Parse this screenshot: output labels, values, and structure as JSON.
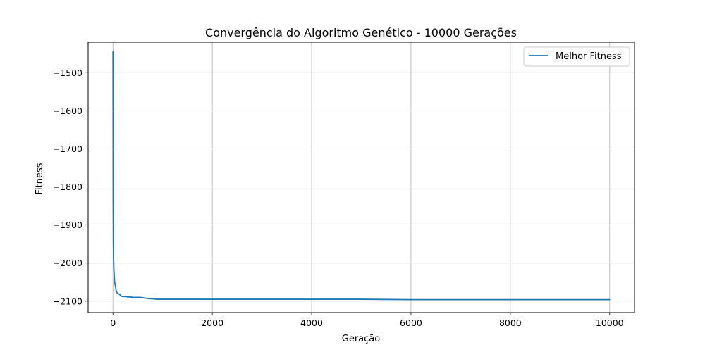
{
  "chart_data": {
    "type": "line",
    "title": "Convergência do Algoritmo Genético - 10000 Gerações",
    "xlabel": "Geração",
    "ylabel": "Fitness",
    "xlim": [
      -500,
      10500
    ],
    "ylim": [
      -2130,
      -1420
    ],
    "xticks": [
      0,
      2000,
      4000,
      6000,
      8000,
      10000
    ],
    "yticks": [
      -1500,
      -1600,
      -1700,
      -1800,
      -1900,
      -2000,
      -2100
    ],
    "grid": true,
    "legend_position": "top-right",
    "series": [
      {
        "name": "Melhor Fitness",
        "color": "#1f77b4",
        "x": [
          0,
          1,
          2,
          3,
          5,
          8,
          12,
          20,
          30,
          40,
          50,
          60,
          70,
          80,
          100,
          130,
          170,
          200,
          250,
          300,
          350,
          400,
          450,
          500,
          550,
          600,
          650,
          700,
          800,
          900,
          1000,
          1200,
          1500,
          2000,
          3000,
          4000,
          5000,
          6000,
          7000,
          8000,
          9000,
          10000
        ],
        "y": [
          -1445,
          -1530,
          -1650,
          -1760,
          -1860,
          -1950,
          -1990,
          -2020,
          -2045,
          -2055,
          -2060,
          -2070,
          -2075,
          -2078,
          -2080,
          -2082,
          -2087,
          -2088,
          -2088,
          -2089,
          -2089,
          -2090,
          -2090,
          -2090,
          -2090,
          -2091,
          -2092,
          -2093,
          -2094,
          -2095,
          -2095,
          -2095,
          -2095,
          -2095,
          -2095,
          -2095,
          -2095,
          -2096,
          -2096,
          -2096,
          -2096,
          -2096
        ]
      }
    ]
  }
}
